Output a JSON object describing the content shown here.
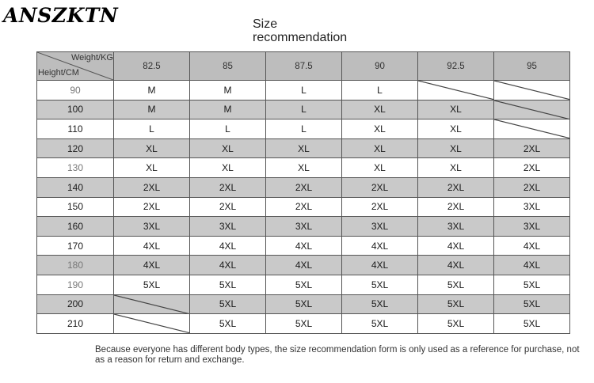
{
  "brand": "ANSZKTN",
  "title_line1": "Size",
  "title_line2": "recommendation",
  "corner": {
    "weight_label": "Weight/KG",
    "height_label": "Height/CM"
  },
  "weights": [
    "82.5",
    "85",
    "87.5",
    "90",
    "92.5",
    "95"
  ],
  "rows": [
    {
      "height": "90",
      "shade": false,
      "sizes": [
        "M",
        "M",
        "L",
        "L",
        "",
        ""
      ]
    },
    {
      "height": "100",
      "shade": true,
      "sizes": [
        "M",
        "M",
        "L",
        "XL",
        "XL",
        ""
      ]
    },
    {
      "height": "110",
      "shade": false,
      "sizes": [
        "L",
        "L",
        "L",
        "XL",
        "XL",
        ""
      ]
    },
    {
      "height": "120",
      "shade": true,
      "sizes": [
        "XL",
        "XL",
        "XL",
        "XL",
        "XL",
        "2XL"
      ]
    },
    {
      "height": "130",
      "shade": false,
      "sizes": [
        "XL",
        "XL",
        "XL",
        "XL",
        "XL",
        "2XL"
      ]
    },
    {
      "height": "140",
      "shade": true,
      "sizes": [
        "2XL",
        "2XL",
        "2XL",
        "2XL",
        "2XL",
        "2XL"
      ]
    },
    {
      "height": "150",
      "shade": false,
      "sizes": [
        "2XL",
        "2XL",
        "2XL",
        "2XL",
        "2XL",
        "3XL"
      ]
    },
    {
      "height": "160",
      "shade": true,
      "sizes": [
        "3XL",
        "3XL",
        "3XL",
        "3XL",
        "3XL",
        "3XL"
      ]
    },
    {
      "height": "170",
      "shade": false,
      "sizes": [
        "4XL",
        "4XL",
        "4XL",
        "4XL",
        "4XL",
        "4XL"
      ]
    },
    {
      "height": "180",
      "shade": true,
      "sizes": [
        "4XL",
        "4XL",
        "4XL",
        "4XL",
        "4XL",
        "4XL"
      ]
    },
    {
      "height": "190",
      "shade": false,
      "sizes": [
        "5XL",
        "5XL",
        "5XL",
        "5XL",
        "5XL",
        "5XL"
      ]
    },
    {
      "height": "200",
      "shade": true,
      "sizes": [
        "",
        "5XL",
        "5XL",
        "5XL",
        "5XL",
        "5XL"
      ]
    },
    {
      "height": "210",
      "shade": false,
      "sizes": [
        "",
        "5XL",
        "5XL",
        "5XL",
        "5XL",
        "5XL"
      ]
    }
  ],
  "note": "Because everyone has different body types, the size recommendation form is only used as a reference for purchase, not as a reason for return and exchange."
}
